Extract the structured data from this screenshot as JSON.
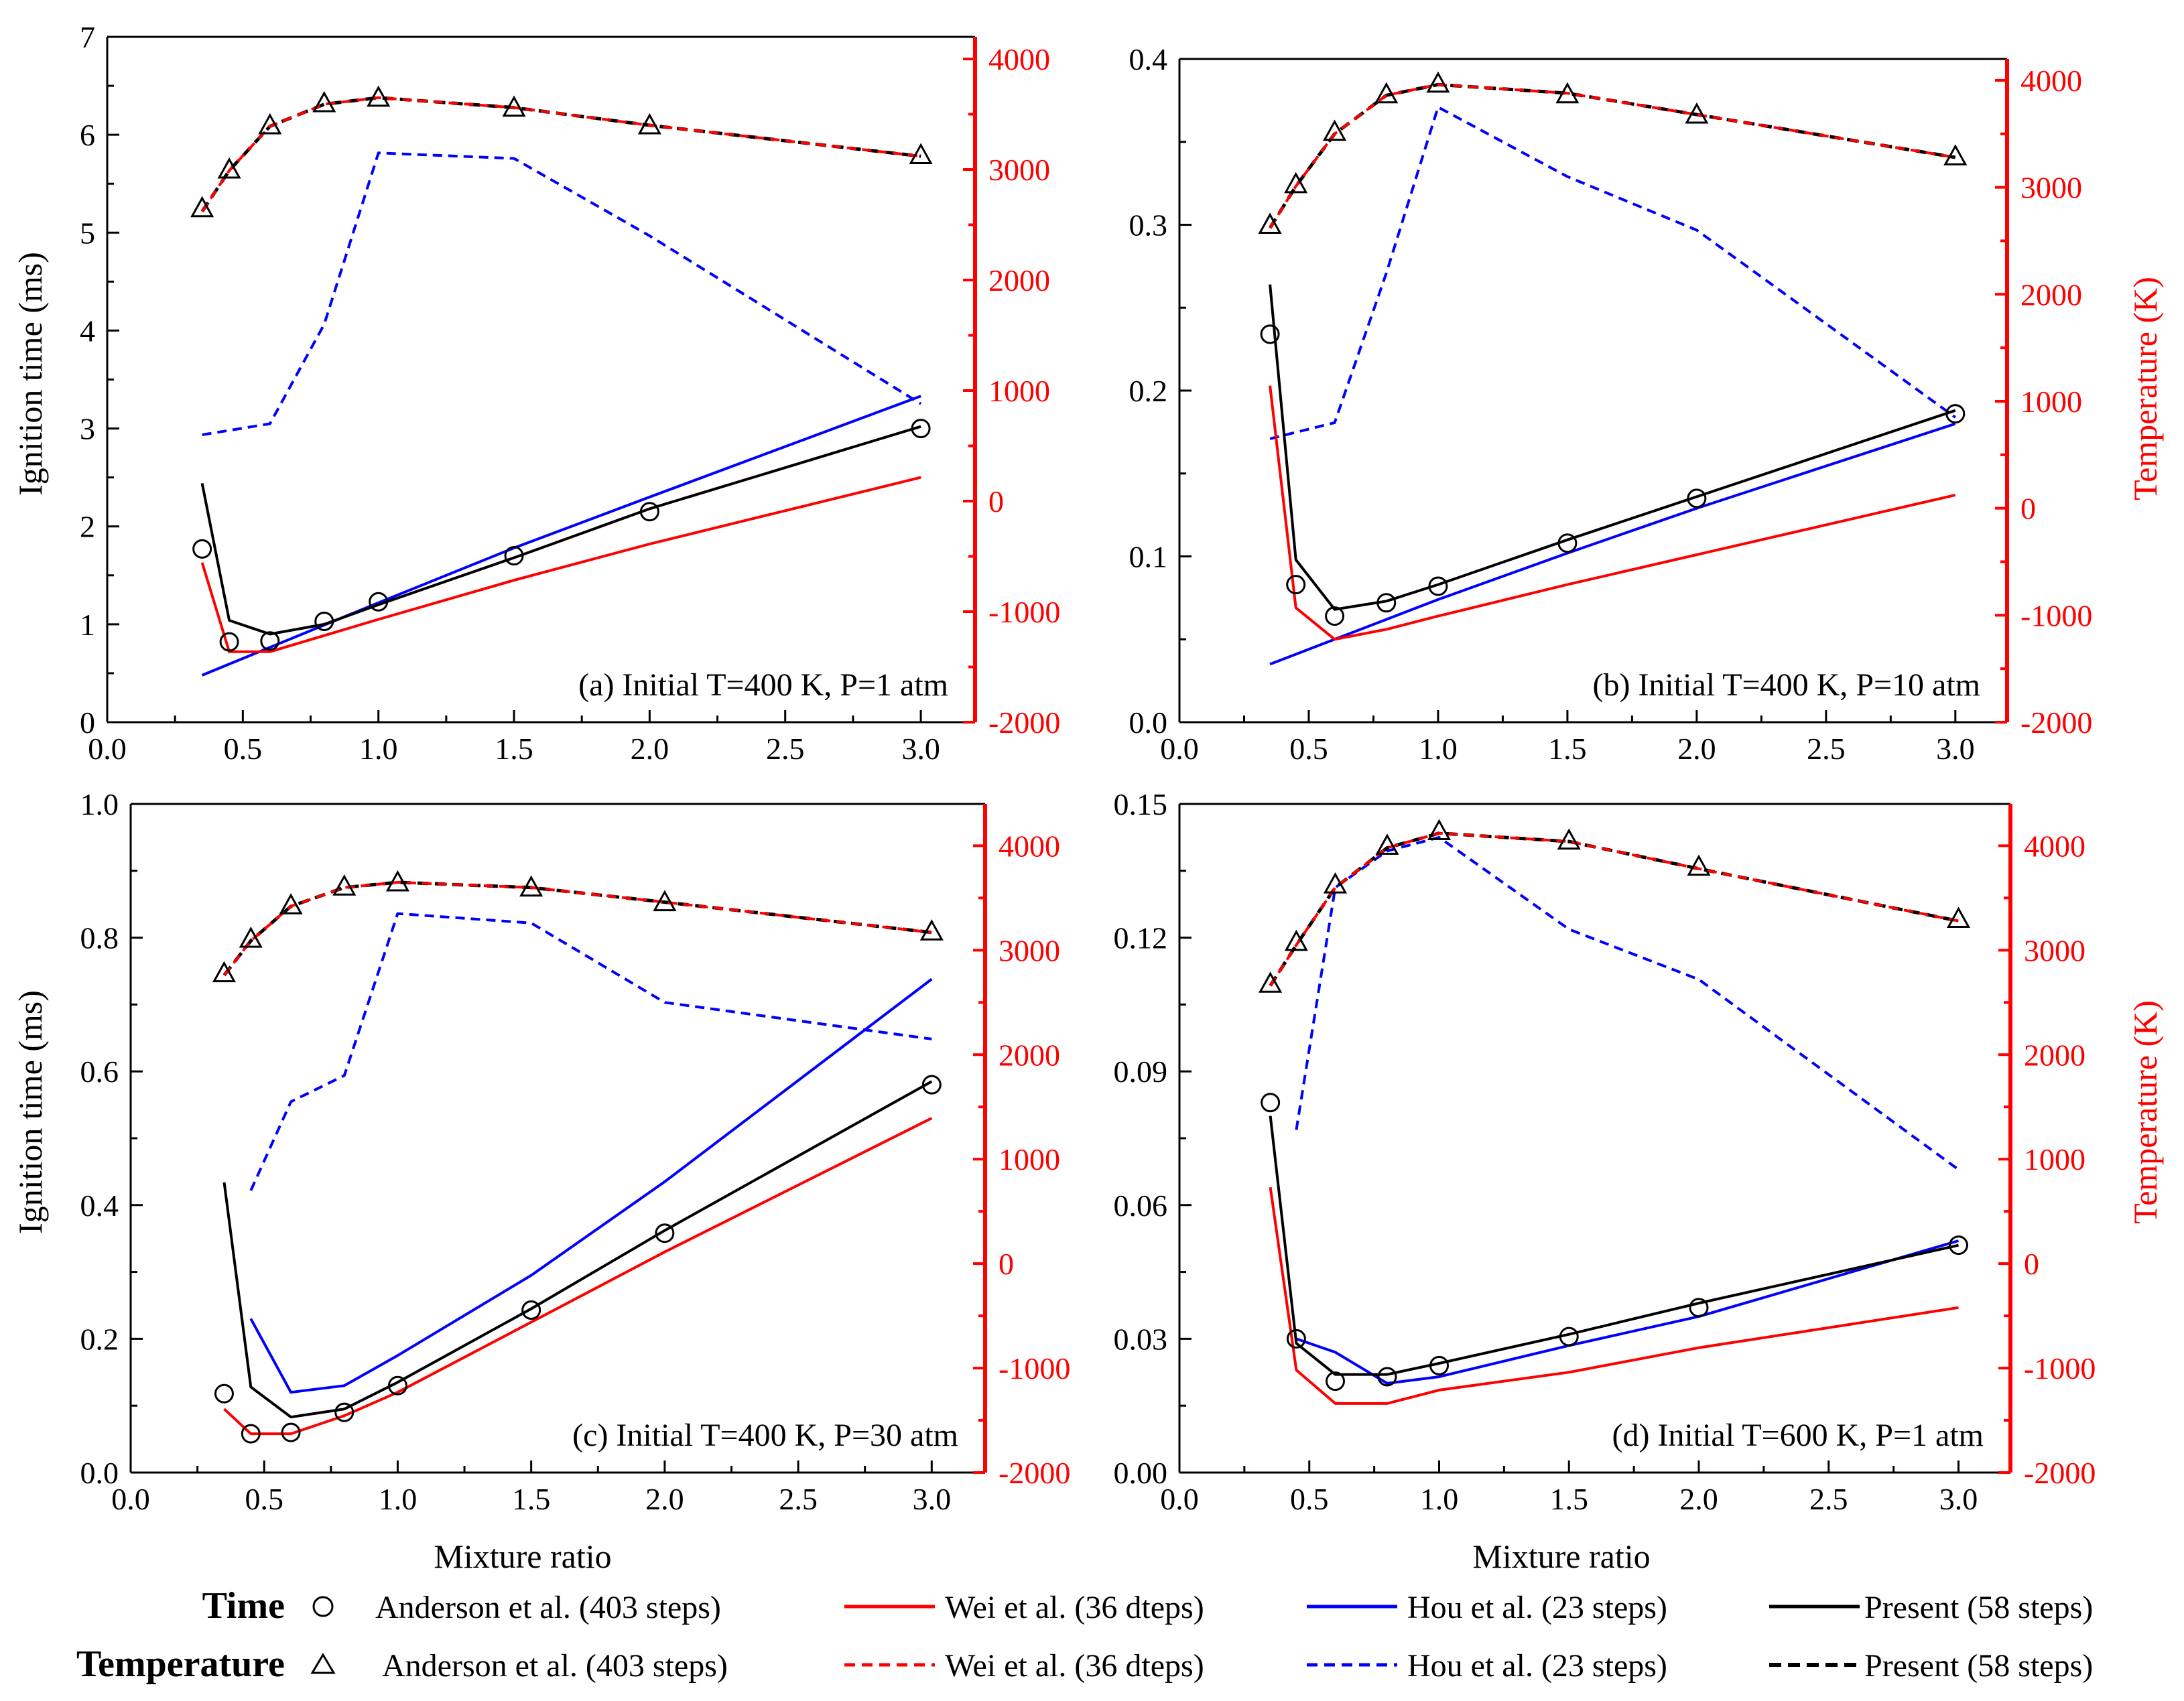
{
  "figure": {
    "x_label": "Mixture ratio",
    "y_label_left": "Ignition time (ms)",
    "y_label_right": "Temperature (K)"
  },
  "colors": {
    "anderson": "#000000",
    "wei": "#ff0000",
    "hou": "#0000ff",
    "present": "#000000",
    "right_axis": "#ff0000",
    "frame": "#000000"
  },
  "legend": {
    "time_label": "Time",
    "temp_label": "Temperature",
    "entries": [
      {
        "key": "anderson",
        "label": "Anderson et al. (403 steps)"
      },
      {
        "key": "wei",
        "label": "Wei et al. (36 dteps)"
      },
      {
        "key": "hou",
        "label": "Hou et al. (23 steps)"
      },
      {
        "key": "present",
        "label": "Present (58 steps)"
      }
    ]
  },
  "chart_data": [
    {
      "type": "line",
      "title": "(a) Initial T=400 K, P=1 atm",
      "xlim": [
        0,
        3.2
      ],
      "x_ticks": [
        "0.0",
        "0.5",
        "1.0",
        "1.5",
        "2.0",
        "2.5",
        "3.0"
      ],
      "ylim_left": [
        0,
        7
      ],
      "y_ticks_left": [
        "0",
        "1",
        "2",
        "3",
        "4",
        "5",
        "6",
        "7"
      ],
      "ylim_right": [
        -2000,
        4200
      ],
      "y_ticks_right": [
        "-2000",
        "-1000",
        "0",
        "1000",
        "2000",
        "3000",
        "4000"
      ],
      "show_left_labels": true,
      "show_right_labels": false,
      "time": {
        "anderson": {
          "x": [
            0.35,
            0.45,
            0.6,
            0.8,
            1.0,
            1.5,
            2.0,
            3.0
          ],
          "y": [
            1.77,
            0.82,
            0.83,
            1.03,
            1.23,
            1.7,
            2.15,
            3.0
          ]
        },
        "wei": {
          "x": [
            0.35,
            0.45,
            0.6,
            1.0,
            1.5,
            2.0,
            3.0
          ],
          "y": [
            1.63,
            0.72,
            0.72,
            1.05,
            1.45,
            1.82,
            2.5
          ]
        },
        "hou": {
          "x": [
            0.35,
            1.0,
            1.5,
            2.0,
            3.0
          ],
          "y": [
            0.48,
            1.22,
            1.78,
            2.3,
            3.33
          ]
        },
        "present": {
          "x": [
            0.35,
            0.45,
            0.6,
            0.8,
            1.0,
            1.5,
            2.0,
            3.0
          ],
          "y": [
            2.44,
            1.04,
            0.9,
            1.0,
            1.2,
            1.68,
            2.18,
            3.02
          ]
        }
      },
      "temp": {
        "anderson": {
          "x": [
            0.35,
            0.45,
            0.6,
            0.8,
            1.0,
            1.5,
            2.0,
            3.0
          ],
          "y": [
            2650,
            3000,
            3400,
            3600,
            3650,
            3560,
            3400,
            3130
          ]
        },
        "wei": {
          "x": [
            0.35,
            0.45,
            0.6,
            0.8,
            1.0,
            1.5,
            2.0,
            3.0
          ],
          "y": [
            2620,
            2990,
            3390,
            3590,
            3650,
            3560,
            3400,
            3120
          ]
        },
        "hou": {
          "x": [
            0.35,
            0.6,
            0.8,
            1.0,
            1.5,
            2.0,
            3.0
          ],
          "y": [
            600,
            700,
            1600,
            3150,
            3100,
            2400,
            880
          ]
        },
        "present": {
          "x": [
            0.35,
            0.45,
            0.6,
            0.8,
            1.0,
            1.5,
            2.0,
            3.0
          ],
          "y": [
            2620,
            2990,
            3390,
            3590,
            3650,
            3560,
            3400,
            3120
          ]
        }
      }
    },
    {
      "type": "line",
      "title": "(b) Initial T=400 K, P=10 atm",
      "xlim": [
        0,
        3.2
      ],
      "x_ticks": [
        "0.0",
        "0.5",
        "1.0",
        "1.5",
        "2.0",
        "2.5",
        "3.0"
      ],
      "ylim_left": [
        0,
        0.4
      ],
      "y_ticks_left": [
        "0.0",
        "0.1",
        "0.2",
        "0.3",
        "0.4"
      ],
      "ylim_right": [
        -2000,
        4200
      ],
      "y_ticks_right": [
        "-2000",
        "-1000",
        "0",
        "1000",
        "2000",
        "3000",
        "4000"
      ],
      "show_left_labels": true,
      "show_right_labels": true,
      "time": {
        "anderson": {
          "x": [
            0.35,
            0.45,
            0.6,
            0.8,
            1.0,
            1.5,
            2.0,
            3.0
          ],
          "y": [
            0.234,
            0.083,
            0.064,
            0.072,
            0.082,
            0.108,
            0.135,
            0.186
          ]
        },
        "wei": {
          "x": [
            0.35,
            0.45,
            0.6,
            0.8,
            1.0,
            1.5,
            2.0,
            3.0
          ],
          "y": [
            0.203,
            0.069,
            0.05,
            0.056,
            0.064,
            0.083,
            0.101,
            0.137
          ]
        },
        "hou": {
          "x": [
            0.35,
            0.6,
            1.0,
            1.5,
            2.0,
            3.0
          ],
          "y": [
            0.035,
            0.05,
            0.074,
            0.102,
            0.129,
            0.18
          ]
        },
        "present": {
          "x": [
            0.35,
            0.45,
            0.6,
            0.8,
            1.0,
            1.5,
            2.0,
            3.0
          ],
          "y": [
            0.264,
            0.098,
            0.068,
            0.073,
            0.083,
            0.11,
            0.136,
            0.188
          ]
        }
      },
      "temp": {
        "anderson": {
          "x": [
            0.35,
            0.45,
            0.6,
            0.8,
            1.0,
            1.5,
            2.0,
            3.0
          ],
          "y": [
            2650,
            3030,
            3520,
            3870,
            3970,
            3870,
            3680,
            3290
          ]
        },
        "wei": {
          "x": [
            0.35,
            0.45,
            0.6,
            0.8,
            1.0,
            1.5,
            2.0,
            3.0
          ],
          "y": [
            2620,
            3010,
            3500,
            3860,
            3960,
            3880,
            3680,
            3280
          ]
        },
        "hou": {
          "x": [
            0.35,
            0.6,
            0.8,
            1.0,
            1.5,
            2.0,
            3.0
          ],
          "y": [
            650,
            800,
            2200,
            3750,
            3100,
            2600,
            850
          ]
        },
        "present": {
          "x": [
            0.35,
            0.45,
            0.6,
            0.8,
            1.0,
            1.5,
            2.0,
            3.0
          ],
          "y": [
            2620,
            3010,
            3500,
            3860,
            3960,
            3880,
            3680,
            3280
          ]
        }
      }
    },
    {
      "type": "line",
      "title": "(c) Initial T=400 K, P=30 atm",
      "xlim": [
        0,
        3.2
      ],
      "x_ticks": [
        "0.0",
        "0.5",
        "1.0",
        "1.5",
        "2.0",
        "2.5",
        "3.0"
      ],
      "ylim_left": [
        0,
        1.0
      ],
      "y_ticks_left": [
        "0.0",
        "0.2",
        "0.4",
        "0.6",
        "0.8",
        "1.0"
      ],
      "ylim_right": [
        -2000,
        4400
      ],
      "y_ticks_right": [
        "-2000",
        "-1000",
        "0",
        "1000",
        "2000",
        "3000",
        "4000"
      ],
      "show_left_labels": true,
      "show_right_labels": false,
      "time": {
        "anderson": {
          "x": [
            0.35,
            0.45,
            0.6,
            0.8,
            1.0,
            1.5,
            2.0,
            3.0
          ],
          "y": [
            0.118,
            0.058,
            0.06,
            0.09,
            0.13,
            0.243,
            0.358,
            0.58
          ]
        },
        "wei": {
          "x": [
            0.35,
            0.45,
            0.6,
            0.8,
            1.0,
            1.5,
            2.0,
            3.0
          ],
          "y": [
            0.095,
            0.058,
            0.058,
            0.085,
            0.12,
            0.225,
            0.33,
            0.53
          ]
        },
        "hou": {
          "x": [
            0.45,
            0.6,
            0.8,
            1.0,
            1.5,
            2.0,
            3.0
          ],
          "y": [
            0.23,
            0.12,
            0.13,
            0.175,
            0.295,
            0.435,
            0.738
          ]
        },
        "present": {
          "x": [
            0.35,
            0.45,
            0.6,
            0.8,
            1.0,
            1.5,
            2.0,
            3.0
          ],
          "y": [
            0.434,
            0.128,
            0.083,
            0.095,
            0.135,
            0.245,
            0.362,
            0.585
          ]
        }
      },
      "temp": {
        "anderson": {
          "x": [
            0.35,
            0.45,
            0.6,
            0.8,
            1.0,
            1.5,
            2.0,
            3.0
          ],
          "y": [
            2780,
            3110,
            3430,
            3610,
            3650,
            3600,
            3460,
            3180
          ]
        },
        "wei": {
          "x": [
            0.35,
            0.45,
            0.6,
            0.8,
            1.0,
            1.5,
            2.0,
            3.0
          ],
          "y": [
            2760,
            3090,
            3420,
            3600,
            3650,
            3600,
            3460,
            3170
          ]
        },
        "hou": {
          "x": [
            0.45,
            0.6,
            0.8,
            1.0,
            1.5,
            2.0,
            3.0
          ],
          "y": [
            700,
            1550,
            1800,
            3350,
            3260,
            2500,
            2150
          ]
        },
        "present": {
          "x": [
            0.35,
            0.45,
            0.6,
            0.8,
            1.0,
            1.5,
            2.0,
            3.0
          ],
          "y": [
            2760,
            3090,
            3420,
            3600,
            3650,
            3600,
            3460,
            3170
          ]
        }
      }
    },
    {
      "type": "line",
      "title": "(d) Initial T=600 K, P=1 atm",
      "xlim": [
        0,
        3.2
      ],
      "x_ticks": [
        "0.0",
        "0.5",
        "1.0",
        "1.5",
        "2.0",
        "2.5",
        "3.0"
      ],
      "ylim_left": [
        0,
        0.15
      ],
      "y_ticks_left": [
        "0.00",
        "0.03",
        "0.06",
        "0.09",
        "0.12",
        "0.15"
      ],
      "ylim_right": [
        -2000,
        4400
      ],
      "y_ticks_right": [
        "-2000",
        "-1000",
        "0",
        "1000",
        "2000",
        "3000",
        "4000"
      ],
      "show_left_labels": true,
      "show_right_labels": true,
      "time": {
        "anderson": {
          "x": [
            0.35,
            0.45,
            0.6,
            0.8,
            1.0,
            1.5,
            2.0,
            3.0
          ],
          "y": [
            0.083,
            0.03,
            0.0205,
            0.0215,
            0.024,
            0.0305,
            0.037,
            0.051
          ]
        },
        "wei": {
          "x": [
            0.35,
            0.45,
            0.6,
            0.8,
            1.0,
            1.5,
            2.0,
            3.0
          ],
          "y": [
            0.064,
            0.023,
            0.0155,
            0.0155,
            0.0185,
            0.0225,
            0.028,
            0.037
          ]
        },
        "hou": {
          "x": [
            0.45,
            0.6,
            0.8,
            1.0,
            1.5,
            2.0,
            3.0
          ],
          "y": [
            0.03,
            0.027,
            0.02,
            0.0215,
            0.0285,
            0.035,
            0.052
          ]
        },
        "present": {
          "x": [
            0.35,
            0.45,
            0.6,
            0.8,
            1.0,
            1.5,
            2.0,
            3.0
          ],
          "y": [
            0.08,
            0.029,
            0.022,
            0.022,
            0.0245,
            0.031,
            0.038,
            0.051
          ]
        }
      },
      "temp": {
        "anderson": {
          "x": [
            0.35,
            0.45,
            0.6,
            0.8,
            1.0,
            1.5,
            2.0,
            3.0
          ],
          "y": [
            2680,
            3080,
            3630,
            4000,
            4140,
            4050,
            3800,
            3300
          ]
        },
        "wei": {
          "x": [
            0.35,
            0.45,
            0.6,
            0.8,
            1.0,
            1.5,
            2.0,
            3.0
          ],
          "y": [
            2660,
            3050,
            3600,
            3980,
            4120,
            4040,
            3780,
            3280
          ]
        },
        "hou": {
          "x": [
            0.45,
            0.6,
            0.8,
            1.0,
            1.5,
            2.0,
            3.0
          ],
          "y": [
            1280,
            3600,
            3950,
            4080,
            3200,
            2720,
            900
          ]
        },
        "present": {
          "x": [
            0.35,
            0.45,
            0.6,
            0.8,
            1.0,
            1.5,
            2.0,
            3.0
          ],
          "y": [
            2660,
            3050,
            3600,
            3980,
            4120,
            4040,
            3780,
            3280
          ]
        }
      }
    }
  ]
}
